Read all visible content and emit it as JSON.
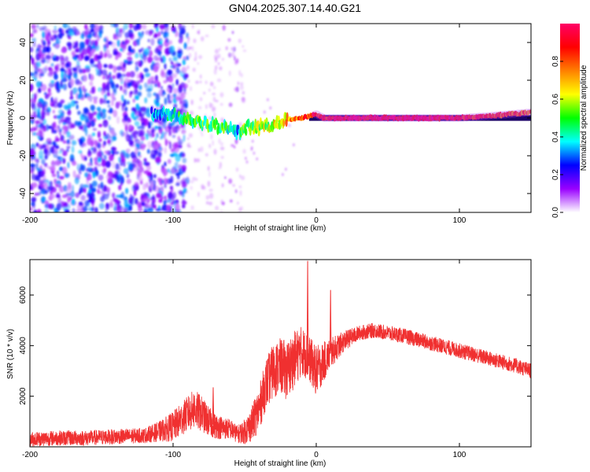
{
  "title": "GN04.2025.307.14.40.G21",
  "colors": {
    "snr_line": "#f03030",
    "frame": "#000000",
    "ridge": "#ff2060"
  },
  "chart_data": [
    {
      "type": "heatmap",
      "title": "GN04.2025.307.14.40.G21",
      "xlabel": "Height of straight line (km)",
      "ylabel": "Frequency (Hz)",
      "xlim": [
        -200,
        150
      ],
      "ylim": [
        -50,
        50
      ],
      "xticks": [
        -200,
        -100,
        0,
        100
      ],
      "yticks": [
        -40,
        -20,
        0,
        20,
        40
      ],
      "colorbar": {
        "label": "Normalized spectral amplitude",
        "range": [
          0,
          1
        ],
        "ticks": [
          0.0,
          0.2,
          0.4,
          0.6,
          0.8
        ],
        "tick_labels": [
          "0.0",
          "0.2",
          "0.4",
          "0.6",
          "0.8"
        ],
        "colors": [
          "#ffffff",
          "#9900ff",
          "#0000ff",
          "#00ffff",
          "#00ff00",
          "#ffff00",
          "#ff8000",
          "#ff0000",
          "#ff0066"
        ]
      },
      "ridge": {
        "x": [
          -110,
          -100,
          -90,
          -80,
          -70,
          -60,
          -55,
          -50,
          -40,
          -30,
          -20,
          -10,
          -5,
          0,
          5,
          20,
          50,
          80,
          100,
          120,
          150
        ],
        "y": [
          2,
          2,
          0,
          -2,
          -4,
          -6,
          -8,
          -5,
          -5,
          -3,
          -1,
          0,
          1,
          2,
          0,
          0,
          0,
          0,
          0,
          1,
          3
        ],
        "amplitude": [
          0.35,
          0.4,
          0.45,
          0.5,
          0.5,
          0.45,
          0.3,
          0.55,
          0.55,
          0.6,
          0.7,
          0.8,
          0.85,
          0.9,
          0.85,
          0.95,
          0.95,
          0.95,
          0.9,
          0.85,
          0.75
        ]
      }
    },
    {
      "type": "line",
      "xlabel": "Height of straight line (km)",
      "ylabel": "SNR (10 * v/v)",
      "xlim": [
        -200,
        150
      ],
      "ylim": [
        0,
        7400
      ],
      "xticks": [
        -200,
        -100,
        0,
        100
      ],
      "yticks": [
        2000,
        4000,
        6000
      ],
      "series": [
        {
          "name": "SNR",
          "x": [
            -200,
            -180,
            -160,
            -140,
            -120,
            -110,
            -100,
            -90,
            -85,
            -80,
            -75,
            -70,
            -60,
            -55,
            -50,
            -45,
            -40,
            -35,
            -30,
            -25,
            -20,
            -15,
            -10,
            -5,
            0,
            10,
            20,
            30,
            40,
            50,
            60,
            80,
            100,
            120,
            140,
            150
          ],
          "y": [
            300,
            350,
            350,
            400,
            450,
            600,
            800,
            1300,
            1500,
            1300,
            1000,
            800,
            700,
            500,
            600,
            900,
            1500,
            2500,
            3000,
            3200,
            3000,
            3500,
            3800,
            3500,
            3000,
            3700,
            4200,
            4500,
            4600,
            4500,
            4400,
            4100,
            3800,
            3500,
            3200,
            3000
          ],
          "noise": [
            300,
            300,
            300,
            300,
            300,
            400,
            600,
            700,
            800,
            700,
            600,
            500,
            400,
            350,
            500,
            700,
            900,
            1000,
            1100,
            1100,
            1200,
            1100,
            1000,
            900,
            1000,
            600,
            400,
            300,
            300,
            300,
            300,
            300,
            300,
            300,
            300,
            300
          ]
        }
      ],
      "spikes": [
        {
          "x": -72,
          "y": 2350
        },
        {
          "x": -6,
          "y": 7350
        },
        {
          "x": 10,
          "y": 6200
        }
      ]
    }
  ]
}
